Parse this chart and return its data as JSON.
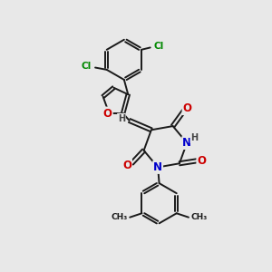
{
  "bg_color": "#e8e8e8",
  "bond_color": "#1a1a1a",
  "bond_width": 1.4,
  "atom_colors": {
    "O": "#cc0000",
    "N": "#0000cc",
    "Cl": "#008800",
    "C": "#1a1a1a",
    "H": "#444444"
  },
  "font_size_atom": 8.5,
  "font_size_small": 7.0,
  "font_size_label": 7.5
}
